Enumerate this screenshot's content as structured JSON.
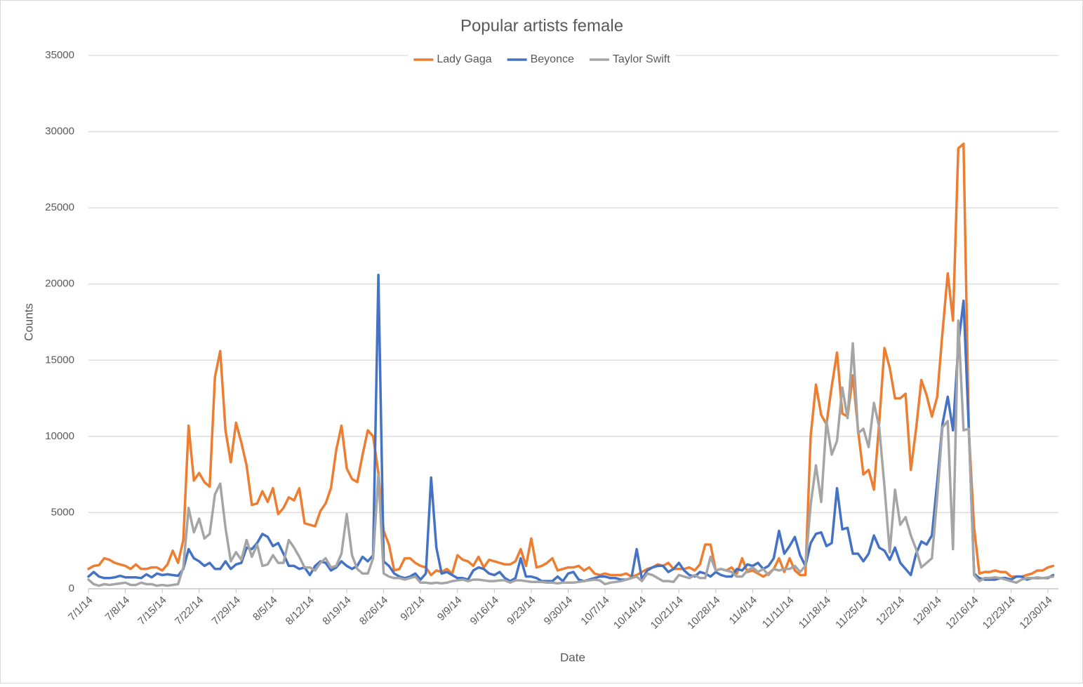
{
  "chart_data": {
    "type": "line",
    "title": "Popular artists female",
    "x_label": "Date",
    "y_label": "Counts",
    "categories": [
      "7/1/14",
      null,
      null,
      null,
      null,
      null,
      null,
      "7/8/14",
      null,
      null,
      null,
      null,
      null,
      null,
      "7/15/14",
      null,
      null,
      null,
      null,
      null,
      null,
      "7/22/14",
      null,
      null,
      null,
      null,
      null,
      null,
      "7/29/14",
      null,
      null,
      null,
      null,
      null,
      null,
      "8/5/14",
      null,
      null,
      null,
      null,
      null,
      null,
      "8/12/14",
      null,
      null,
      null,
      null,
      null,
      null,
      "8/19/14",
      null,
      null,
      null,
      null,
      null,
      null,
      "8/26/14",
      null,
      null,
      null,
      null,
      null,
      null,
      "9/2/14",
      null,
      null,
      null,
      null,
      null,
      null,
      "9/9/14",
      null,
      null,
      null,
      null,
      null,
      null,
      "9/16/14",
      null,
      null,
      null,
      null,
      null,
      null,
      "9/23/14",
      null,
      null,
      null,
      null,
      null,
      null,
      "9/30/14",
      null,
      null,
      null,
      null,
      null,
      null,
      "10/7/14",
      null,
      null,
      null,
      null,
      null,
      null,
      "10/14/14",
      null,
      null,
      null,
      null,
      null,
      null,
      "10/21/14",
      null,
      null,
      null,
      null,
      null,
      null,
      "10/28/14",
      null,
      null,
      null,
      null,
      null,
      null,
      "11/4/14",
      null,
      null,
      null,
      null,
      null,
      null,
      "11/11/14",
      null,
      null,
      null,
      null,
      null,
      null,
      "11/18/14",
      null,
      null,
      null,
      null,
      null,
      null,
      "11/25/14",
      null,
      null,
      null,
      null,
      null,
      null,
      "12/2/14",
      null,
      null,
      null,
      null,
      null,
      null,
      "12/9/14",
      null,
      null,
      null,
      null,
      null,
      null,
      "12/16/14",
      null,
      null,
      null,
      null,
      null,
      null,
      "12/23/14",
      null,
      null,
      null,
      null,
      null,
      null,
      "12/30/14",
      null
    ],
    "series": [
      {
        "name": "Lady Gaga",
        "color": "#ed7d31",
        "values": [
          1300,
          1500,
          1550,
          2000,
          1900,
          1700,
          1600,
          1500,
          1300,
          1600,
          1300,
          1300,
          1400,
          1400,
          1200,
          1600,
          2500,
          1700,
          3200,
          10700,
          7100,
          7600,
          7000,
          6700,
          13900,
          15600,
          10400,
          8300,
          10900,
          9600,
          8100,
          5500,
          5600,
          6400,
          5700,
          6600,
          4900,
          5300,
          6000,
          5800,
          6600,
          4300,
          4200,
          4100,
          5100,
          5600,
          6600,
          9100,
          10700,
          7900,
          7200,
          7000,
          8800,
          10400,
          10000,
          7600,
          3800,
          2900,
          1200,
          1300,
          2000,
          2000,
          1700,
          1500,
          1400,
          900,
          1200,
          1100,
          1300,
          1000,
          2200,
          1900,
          1800,
          1500,
          2100,
          1400,
          1900,
          1800,
          1700,
          1600,
          1600,
          1800,
          2600,
          1500,
          3300,
          1400,
          1500,
          1700,
          2000,
          1200,
          1300,
          1400,
          1400,
          1500,
          1200,
          1400,
          1000,
          900,
          1000,
          900,
          900,
          900,
          1000,
          800,
          900,
          1100,
          1300,
          1400,
          1600,
          1500,
          1700,
          1300,
          1300,
          1300,
          1400,
          1200,
          1600,
          2900,
          2900,
          1200,
          1300,
          1200,
          1400,
          1000,
          2000,
          1100,
          1200,
          1000,
          800,
          1000,
          1300,
          2000,
          1100,
          2000,
          1200,
          900,
          900,
          10000,
          13400,
          11400,
          10800,
          13300,
          15500,
          11500,
          11300,
          14000,
          10400,
          7500,
          7800,
          6500,
          10900,
          15800,
          14500,
          12500,
          12500,
          12800,
          7800,
          10500,
          13700,
          12700,
          11300,
          12600,
          16800,
          20700,
          17600,
          28900,
          29200,
          10400,
          4000,
          1000,
          1100,
          1100,
          1200,
          1100,
          1100,
          800,
          800,
          800,
          900,
          1000,
          1200,
          1200,
          1400,
          1500
        ]
      },
      {
        "name": "Beyonce",
        "color": "#4472c4",
        "values": [
          800,
          1100,
          800,
          700,
          700,
          750,
          850,
          750,
          750,
          750,
          700,
          950,
          750,
          1000,
          900,
          950,
          900,
          850,
          1300,
          2600,
          2000,
          1800,
          1500,
          1700,
          1300,
          1300,
          1800,
          1300,
          1600,
          1700,
          2700,
          2600,
          3000,
          3600,
          3400,
          2800,
          3000,
          2300,
          1500,
          1500,
          1300,
          1400,
          900,
          1500,
          1800,
          1700,
          1200,
          1400,
          1800,
          1500,
          1300,
          1500,
          2100,
          1800,
          2200,
          20600,
          1800,
          1500,
          1000,
          800,
          700,
          800,
          1000,
          600,
          1000,
          7300,
          2700,
          1000,
          1100,
          900,
          700,
          700,
          600,
          1200,
          1400,
          1300,
          1000,
          900,
          1100,
          700,
          500,
          700,
          2000,
          800,
          800,
          700,
          500,
          500,
          500,
          800,
          500,
          1000,
          1100,
          600,
          500,
          600,
          700,
          800,
          800,
          700,
          700,
          600,
          600,
          700,
          2600,
          600,
          1200,
          1400,
          1500,
          1500,
          1100,
          1300,
          1700,
          1200,
          900,
          800,
          1100,
          1000,
          800,
          1100,
          900,
          800,
          800,
          1300,
          1200,
          1600,
          1500,
          1700,
          1300,
          1500,
          2000,
          3800,
          2300,
          2800,
          3400,
          2200,
          1500,
          3000,
          3600,
          3700,
          2800,
          3000,
          6600,
          3900,
          4000,
          2300,
          2300,
          1800,
          2300,
          3500,
          2700,
          2500,
          1900,
          2700,
          1700,
          1300,
          900,
          2300,
          3100,
          2900,
          3500,
          7000,
          10800,
          12600,
          10400,
          16000,
          18900,
          10500,
          1000,
          700,
          600,
          600,
          600,
          700,
          700,
          600,
          800,
          800,
          600,
          700,
          700,
          700,
          700,
          900
        ]
      },
      {
        "name": "Taylor Swift",
        "color": "#a5a5a5",
        "values": [
          600,
          300,
          200,
          300,
          250,
          300,
          350,
          400,
          250,
          250,
          400,
          300,
          300,
          200,
          250,
          200,
          250,
          300,
          1400,
          5300,
          3700,
          4600,
          3300,
          3600,
          6200,
          6900,
          4000,
          1800,
          2400,
          1900,
          3200,
          2100,
          2900,
          1500,
          1600,
          2200,
          1700,
          1700,
          3200,
          2700,
          2100,
          1400,
          1400,
          1200,
          1700,
          2000,
          1400,
          1500,
          2300,
          4900,
          2200,
          1300,
          1000,
          1000,
          2000,
          7500,
          1000,
          800,
          700,
          700,
          600,
          700,
          800,
          400,
          400,
          350,
          400,
          350,
          400,
          500,
          550,
          600,
          500,
          600,
          600,
          550,
          500,
          500,
          550,
          550,
          400,
          550,
          550,
          500,
          450,
          450,
          450,
          400,
          400,
          350,
          400,
          400,
          400,
          450,
          500,
          550,
          600,
          550,
          300,
          400,
          450,
          500,
          600,
          700,
          800,
          500,
          1000,
          900,
          700,
          500,
          500,
          450,
          900,
          800,
          700,
          900,
          700,
          700,
          2100,
          1200,
          1300,
          1200,
          1100,
          800,
          800,
          1200,
          1400,
          1100,
          1300,
          900,
          1300,
          1200,
          1300,
          1300,
          1500,
          1100,
          1500,
          5500,
          8100,
          5700,
          11000,
          8800,
          9700,
          13200,
          11200,
          16100,
          10200,
          10500,
          9300,
          12200,
          10600,
          6700,
          2400,
          6500,
          4200,
          4700,
          3500,
          2600,
          1400,
          1700,
          2000,
          6000,
          10600,
          11000,
          2600,
          17600,
          10400,
          10500,
          900,
          500,
          700,
          700,
          750,
          700,
          600,
          500,
          400,
          600,
          700,
          700,
          750,
          700,
          750,
          800
        ]
      }
    ],
    "ylim": [
      0,
      35000
    ],
    "yticks": [
      0,
      5000,
      10000,
      15000,
      20000,
      25000,
      30000,
      35000
    ],
    "grid": true,
    "legend": "top"
  }
}
